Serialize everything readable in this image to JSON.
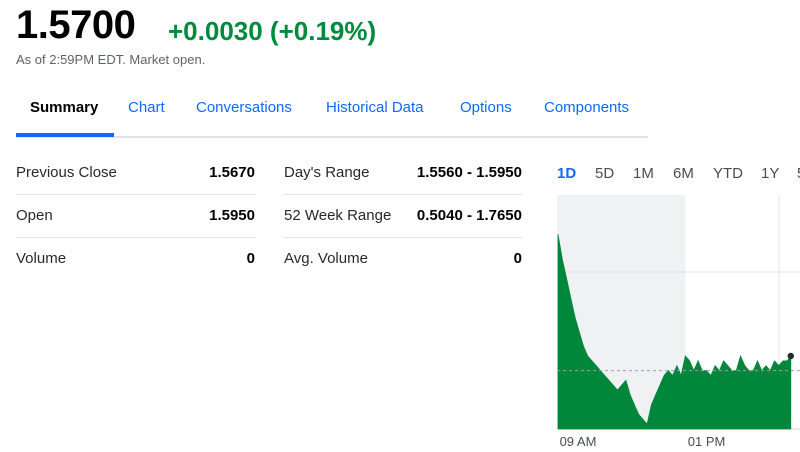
{
  "quote": {
    "price": "1.5700",
    "change": "+0.0030 (+0.19%)",
    "as_of": "As of 2:59PM EDT. Market open.",
    "change_color": "#008a3d"
  },
  "tabs": [
    {
      "label": "Summary"
    },
    {
      "label": "Chart"
    },
    {
      "label": "Conversations"
    },
    {
      "label": "Historical Data"
    },
    {
      "label": "Options"
    },
    {
      "label": "Components"
    }
  ],
  "stats_left": [
    {
      "label": "Previous Close",
      "value": "1.5670"
    },
    {
      "label": "Open",
      "value": "1.5950"
    },
    {
      "label": "Volume",
      "value": "0"
    }
  ],
  "stats_right": [
    {
      "label": "Day's Range",
      "value": "1.5560 - 1.5950"
    },
    {
      "label": "52 Week Range",
      "value": "0.5040 - 1.7650"
    },
    {
      "label": "Avg. Volume",
      "value": "0"
    }
  ],
  "ranges": [
    {
      "label": "1D"
    },
    {
      "label": "5D"
    },
    {
      "label": "1M"
    },
    {
      "label": "6M"
    },
    {
      "label": "YTD"
    },
    {
      "label": "1Y"
    },
    {
      "label": "5"
    }
  ],
  "chart_data": {
    "type": "area",
    "x_ticks": [
      "09 AM",
      "01 PM"
    ],
    "series_color": "#00873c",
    "previous_close": 1.567,
    "x": [
      "09:30",
      "09:36",
      "09:42",
      "09:48",
      "09:54",
      "10:00",
      "10:06",
      "10:12",
      "10:18",
      "10:24",
      "10:30",
      "10:36",
      "10:42",
      "10:48",
      "10:54",
      "11:00",
      "11:06",
      "11:12",
      "11:18",
      "11:24",
      "11:30",
      "11:36",
      "11:42",
      "11:48",
      "11:54",
      "12:00",
      "12:06",
      "12:12",
      "12:18",
      "12:24",
      "12:30",
      "12:36",
      "12:42",
      "12:48",
      "12:54",
      "13:00",
      "13:06",
      "13:12",
      "13:18",
      "13:24",
      "13:30",
      "13:36",
      "13:42",
      "13:48",
      "13:54",
      "14:00",
      "14:06",
      "14:12",
      "14:18",
      "14:24",
      "14:30",
      "14:36",
      "14:42",
      "14:48",
      "14:54",
      "14:59"
    ],
    "values": [
      1.595,
      1.59,
      1.586,
      1.582,
      1.578,
      1.575,
      1.572,
      1.57,
      1.569,
      1.568,
      1.567,
      1.566,
      1.565,
      1.564,
      1.563,
      1.564,
      1.565,
      1.562,
      1.56,
      1.558,
      1.557,
      1.556,
      1.56,
      1.562,
      1.564,
      1.566,
      1.567,
      1.566,
      1.568,
      1.566,
      1.57,
      1.569,
      1.567,
      1.569,
      1.567,
      1.567,
      1.566,
      1.568,
      1.567,
      1.569,
      1.568,
      1.567,
      1.567,
      1.57,
      1.568,
      1.567,
      1.567,
      1.569,
      1.567,
      1.568,
      1.567,
      1.569,
      1.568,
      1.569,
      1.569,
      1.57
    ],
    "ylim": [
      1.555,
      1.6
    ],
    "shaded_until": "12:30",
    "session_end": "16:00"
  }
}
